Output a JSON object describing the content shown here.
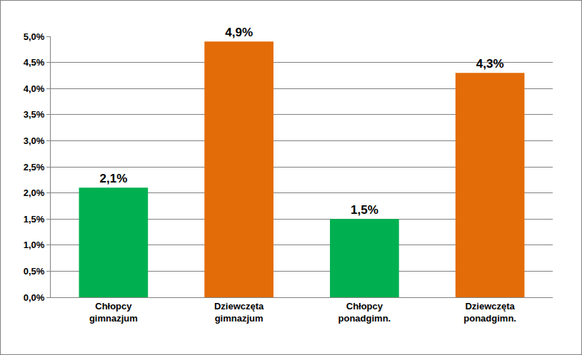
{
  "chart_data": {
    "type": "bar",
    "categories": [
      "Chłopcy\ngimnazjum",
      "Dziewczęta\ngimnazjum",
      "Chłopcy\nponadgimn.",
      "Dziewczęta\nponadgimn."
    ],
    "values": [
      2.1,
      4.9,
      1.5,
      4.3
    ],
    "value_labels": [
      "2,1%",
      "4,9%",
      "1,5%",
      "4,3%"
    ],
    "colors": [
      "#00b050",
      "#e36c09",
      "#00b050",
      "#e36c09"
    ],
    "ylim": [
      0,
      5
    ],
    "yticks": [
      {
        "value": 0,
        "label": "0,0%"
      },
      {
        "value": 0.5,
        "label": "0,5%"
      },
      {
        "value": 1,
        "label": "1,0%"
      },
      {
        "value": 1.5,
        "label": "1,5%"
      },
      {
        "value": 2,
        "label": "2,0%"
      },
      {
        "value": 2.5,
        "label": "2,5%"
      },
      {
        "value": 3,
        "label": "3,0%"
      },
      {
        "value": 3.5,
        "label": "3,5%"
      },
      {
        "value": 4,
        "label": "4,0%"
      },
      {
        "value": 4.5,
        "label": "4,5%"
      },
      {
        "value": 5,
        "label": "5,0%"
      }
    ],
    "grid": true,
    "data_labels": true
  }
}
